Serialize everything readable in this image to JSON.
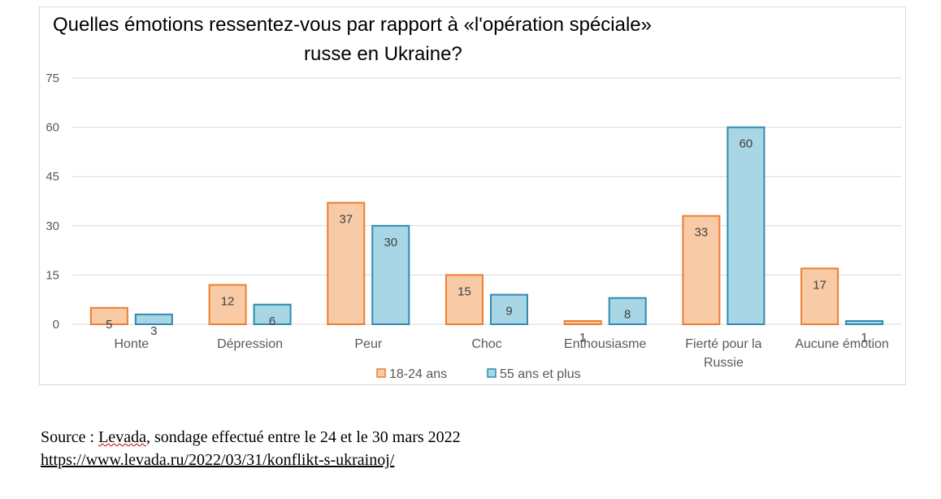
{
  "chart_data": {
    "type": "bar",
    "title_line1": "Quelles émotions ressentez-vous par rapport à «l'opération spéciale»",
    "title_line2": "russe en Ukraine?",
    "categories": [
      [
        "Honte"
      ],
      [
        "Dépression"
      ],
      [
        "Peur"
      ],
      [
        "Choc"
      ],
      [
        "Enthousiasme"
      ],
      [
        "Fierté pour la",
        "Russie"
      ],
      [
        "Aucune émotion"
      ]
    ],
    "series": [
      {
        "name": "18-24 ans",
        "values": [
          5,
          12,
          37,
          15,
          1,
          33,
          17
        ],
        "fill": "#f8cba6",
        "stroke": "#ed7d31"
      },
      {
        "name": "55 ans et plus",
        "values": [
          3,
          6,
          30,
          9,
          8,
          60,
          1
        ],
        "fill": "#a9d6e5",
        "stroke": "#2e8bb3"
      }
    ],
    "yticks": [
      0,
      15,
      30,
      45,
      60,
      75
    ],
    "ylim": [
      0,
      75
    ],
    "grid": true,
    "legend": "bottom",
    "xlabel": "",
    "ylabel": ""
  },
  "source": {
    "prefix": "Source : ",
    "link_text": "Levada",
    "suffix": ", sondage effectué entre le 24 et le 30 mars 2022",
    "url": "https://www.levada.ru/2022/03/31/konflikt-s-ukrainoj/"
  },
  "colors": {
    "grid": "#d9d9d9",
    "tick_text": "#595959",
    "value_text": "#404040"
  }
}
